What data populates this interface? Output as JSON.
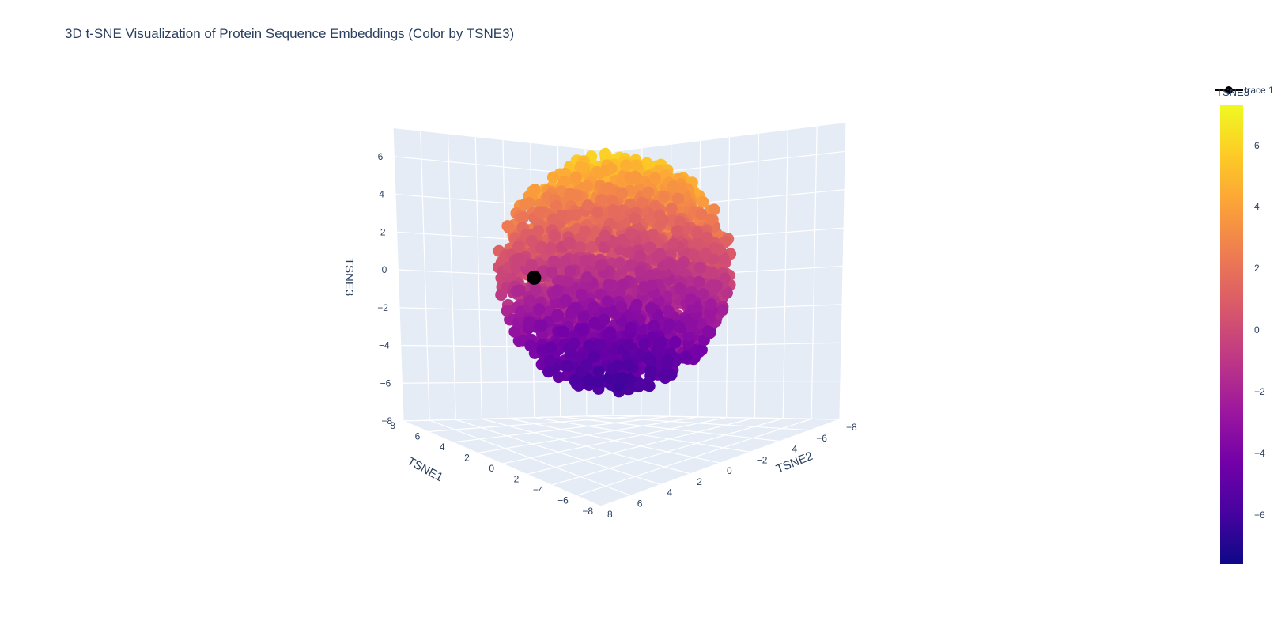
{
  "chart_data": {
    "type": "scatter3d",
    "title": "3D t-SNE Visualization of Protein Sequence Embeddings (Color by TSNE3)",
    "xlabel": "TSNE1",
    "ylabel": "TSNE2",
    "zlabel": "TSNE3",
    "xlim": [
      -8,
      8
    ],
    "ylim": [
      -8,
      8
    ],
    "zlim": [
      -8,
      7.5
    ],
    "x_ticks": [
      "−8",
      "−6",
      "−4",
      "−2",
      "0",
      "2",
      "4",
      "6",
      "8"
    ],
    "y_ticks": [
      "−8",
      "−6",
      "−4",
      "−2",
      "0",
      "2",
      "4",
      "6",
      "8"
    ],
    "z_ticks": [
      "−8",
      "−6",
      "−4",
      "−2",
      "0",
      "2",
      "4",
      "6"
    ],
    "series": [
      {
        "marker_color": "colorscale by TSNE3 (Plasma)",
        "points": "dense cloud of ~3000 embedding points, roughly spherical, radius ~6"
      },
      {
        "name": "trace 1",
        "color": "#000000",
        "x": 1.0,
        "y": -5.0,
        "z": 0.6
      }
    ],
    "colorbar": {
      "title": "TSNE3",
      "ticks": [
        "6",
        "4",
        "2",
        "0",
        "−2",
        "−4",
        "−6"
      ],
      "range": [
        -7.6,
        7.3
      ],
      "colorscale": "Plasma"
    },
    "legend_position": "top-right"
  },
  "legend": {
    "label": "trace 1"
  }
}
